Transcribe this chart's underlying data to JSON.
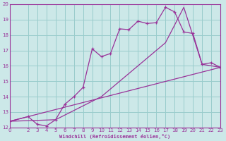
{
  "xlabel": "Windchill (Refroidissement éolien,°C)",
  "bg_color": "#cce8e8",
  "grid_color": "#99cccc",
  "line_color": "#993399",
  "xlim": [
    0,
    23
  ],
  "ylim": [
    12,
    20
  ],
  "xticks": [
    0,
    2,
    3,
    4,
    5,
    6,
    7,
    8,
    9,
    10,
    11,
    12,
    13,
    14,
    15,
    16,
    17,
    18,
    19,
    20,
    21,
    22,
    23
  ],
  "yticks": [
    12,
    13,
    14,
    15,
    16,
    17,
    18,
    19,
    20
  ],
  "line1_x": [
    0,
    2,
    3,
    4,
    5,
    6,
    7,
    8,
    9,
    10,
    11,
    12,
    13,
    14,
    15,
    16,
    17,
    18,
    19,
    20,
    21,
    22,
    23
  ],
  "line1_y": [
    12.4,
    12.7,
    12.2,
    12.1,
    12.5,
    13.5,
    14.0,
    14.6,
    17.1,
    16.6,
    16.8,
    18.4,
    18.35,
    18.9,
    18.75,
    18.8,
    19.8,
    19.5,
    18.2,
    18.1,
    16.1,
    16.2,
    15.9
  ],
  "line2_x": [
    0,
    23
  ],
  "line2_y": [
    12.4,
    15.9
  ],
  "line3_x": [
    0,
    5,
    10,
    17,
    19,
    21,
    23
  ],
  "line3_y": [
    12.4,
    12.5,
    14.0,
    17.5,
    19.8,
    16.1,
    15.9
  ]
}
